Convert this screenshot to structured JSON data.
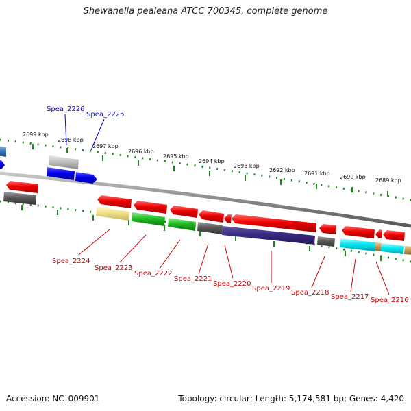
{
  "title": "Shewanella pealeana ATCC 700345, complete genome",
  "footer": {
    "accession": "Accession: NC_009901",
    "stats": "Topology: circular; Length: 5,174,581 bp; Genes: 4,420"
  },
  "kbp_ticks": [
    {
      "text": "2699 kbp"
    },
    {
      "text": "2698 kbp"
    },
    {
      "text": "2697 kbp"
    },
    {
      "text": "2696 kbp"
    },
    {
      "text": "2695 kbp"
    },
    {
      "text": "2694 kbp"
    },
    {
      "text": "2693 kbp"
    },
    {
      "text": "2692 kbp"
    },
    {
      "text": "2691 kbp"
    },
    {
      "text": "2690 kbp"
    },
    {
      "text": "2689 kbp"
    }
  ],
  "gene_labels": {
    "top": [
      "Spea_2226",
      "Spea_2225"
    ],
    "bottom": [
      "Spea_2224",
      "Spea_2223",
      "Spea_2222",
      "Spea_2221",
      "Spea_2220",
      "Spea_2219",
      "Spea_2218",
      "Spea_2217",
      "Spea_2216"
    ]
  },
  "colors": {
    "forward_label": "#0000cc",
    "reverse_label": "#cc0000",
    "backbone": "#8a8a8a",
    "tick": "#1a8a1a"
  }
}
